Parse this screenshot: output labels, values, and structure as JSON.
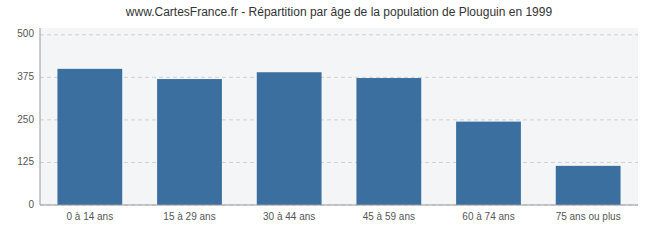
{
  "chart_data": {
    "type": "bar",
    "title": "www.CartesFrance.fr - Répartition par âge de la population de Plouguin en 1999",
    "categories": [
      "0 à 14 ans",
      "15 à 29 ans",
      "30 à 44 ans",
      "45 à 59 ans",
      "60 à 74 ans",
      "75 ans ou plus"
    ],
    "values": [
      400,
      370,
      390,
      373,
      245,
      115
    ],
    "color": "#3a6f9f",
    "ylim": [
      0,
      520
    ],
    "yticks": [
      0,
      125,
      250,
      375,
      500
    ],
    "grid": true
  }
}
